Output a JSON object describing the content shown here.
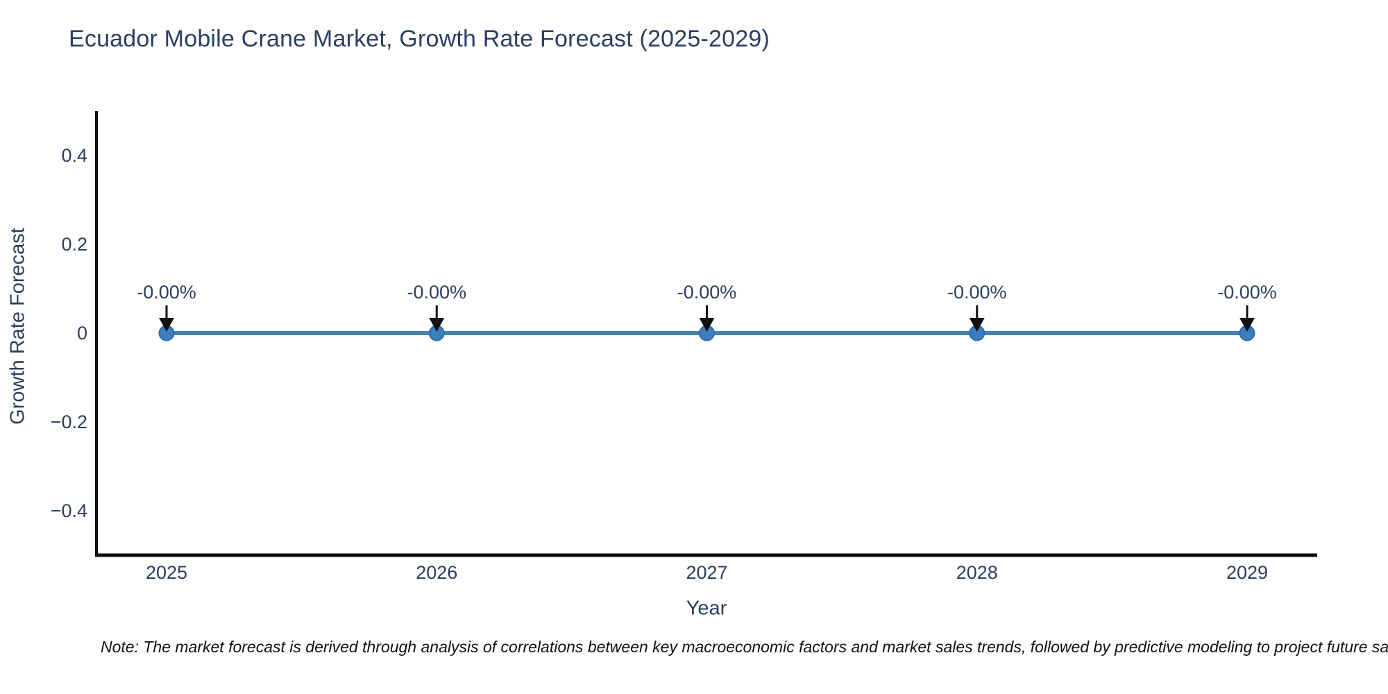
{
  "title": "Ecuador Mobile Crane Market, Growth Rate Forecast (2025-2029)",
  "note": "Note: The market forecast is derived through analysis of correlations between key macroeconomic factors and market sales trends, followed by predictive modeling to project future sa",
  "chart_data": {
    "type": "line",
    "title": "Ecuador Mobile Crane Market, Growth Rate Forecast (2025-2029)",
    "xlabel": "Year",
    "ylabel": "Growth Rate Forecast",
    "x": [
      2025,
      2026,
      2027,
      2028,
      2029
    ],
    "x_tick_labels": [
      "2025",
      "2026",
      "2027",
      "2028",
      "2029"
    ],
    "series": [
      {
        "name": "Growth Rate Forecast",
        "values": [
          0,
          0,
          0,
          0,
          0
        ],
        "point_labels": [
          "-0.00%",
          "-0.00%",
          "-0.00%",
          "-0.00%",
          "-0.00%"
        ]
      }
    ],
    "ylim": [
      -0.5,
      0.5
    ],
    "yticks": [
      0.4,
      0.2,
      0,
      -0.2,
      -0.4
    ],
    "ytick_labels": [
      "0.4",
      "0.2",
      "0",
      "−0.2",
      "−0.4"
    ],
    "grid": false,
    "legend": false,
    "annotation_arrows": true,
    "colors": {
      "line": "#4682b4",
      "marker_fill": "#3e7cbe",
      "marker_stroke": "#2f6da8",
      "arrow": "#111111",
      "axis_line": "#0d0d0d",
      "chart_text": "#2a3f5f",
      "note_text": "#111111"
    }
  }
}
